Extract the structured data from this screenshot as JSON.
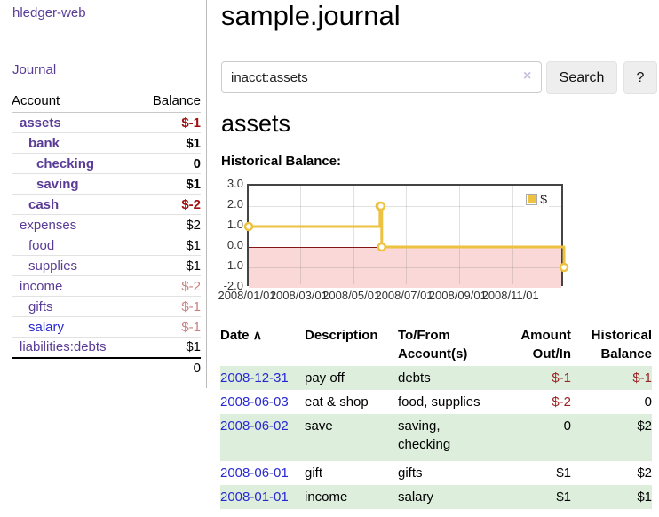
{
  "app": {
    "title": "hledger-web"
  },
  "colors": {
    "link_purple": "#5a3c96",
    "link_blue": "#2828d2",
    "negative_strong": "#a01010",
    "negative_muted": "#c88282",
    "table_negative": "#9b2323",
    "row_stripe_green": "#ddeedd",
    "chart_series_gold": "#edc240",
    "chart_negative_region": "#fad8d8",
    "chart_zero_line": "#871414"
  },
  "sidebar": {
    "nav_journal": "Journal",
    "accounts": {
      "header_account": "Account",
      "header_balance": "Balance",
      "rows": [
        {
          "name": "assets",
          "balance": "$-1",
          "depth": 1,
          "bold": true,
          "balance_class": "neg-strong"
        },
        {
          "name": "bank",
          "balance": "$1",
          "depth": 2,
          "bold": true,
          "balance_class": ""
        },
        {
          "name": "checking",
          "balance": "0",
          "depth": 3,
          "bold": true,
          "balance_class": ""
        },
        {
          "name": "saving",
          "balance": "$1",
          "depth": 3,
          "bold": true,
          "balance_class": ""
        },
        {
          "name": "cash",
          "balance": "$-2",
          "depth": 2,
          "bold": true,
          "balance_class": "neg-strong"
        },
        {
          "name": "expenses",
          "balance": "$2",
          "depth": 1,
          "bold": false,
          "balance_class": ""
        },
        {
          "name": "food",
          "balance": "$1",
          "depth": 2,
          "bold": false,
          "balance_class": ""
        },
        {
          "name": "supplies",
          "balance": "$1",
          "depth": 2,
          "bold": false,
          "balance_class": ""
        },
        {
          "name": "income",
          "balance": "$-2",
          "depth": 1,
          "bold": false,
          "balance_class": "neg-muted"
        },
        {
          "name": "gifts",
          "balance": "$-1",
          "depth": 2,
          "bold": false,
          "balance_class": "neg-muted"
        },
        {
          "name": "salary",
          "balance": "$-1",
          "depth": 2,
          "bold": false,
          "balance_class": "neg-muted",
          "link_color": "blue"
        },
        {
          "name": "liabilities:debts",
          "balance": "$1",
          "depth": 1,
          "bold": false,
          "balance_class": ""
        }
      ],
      "total": "0"
    }
  },
  "main": {
    "title": "sample.journal",
    "search": {
      "value": "inacct:assets",
      "clear_icon": "×",
      "button_label": "Search",
      "help_label": "?"
    },
    "account_heading": "assets",
    "chart_label": "Historical Balance:",
    "register": {
      "headers": {
        "date": "Date",
        "sort_icon": "∧",
        "description": "Description",
        "accounts": "To/From\nAccount(s)",
        "amount": "Amount\nOut/In",
        "balance": "Historical\nBalance"
      },
      "rows": [
        {
          "date": "2008-12-31",
          "description": "pay off",
          "accounts": "debts",
          "amount": "$-1",
          "amount_negative": true,
          "balance": "$-1",
          "balance_negative": true
        },
        {
          "date": "2008-06-03",
          "description": "eat & shop",
          "accounts": "food, supplies",
          "amount": "$-2",
          "amount_negative": true,
          "balance": "0",
          "balance_negative": false
        },
        {
          "date": "2008-06-02",
          "description": "save",
          "accounts": "saving,\nchecking",
          "amount": "0",
          "amount_negative": false,
          "balance": "$2",
          "balance_negative": false
        },
        {
          "date": "2008-06-01",
          "description": "gift",
          "accounts": "gifts",
          "amount": "$1",
          "amount_negative": false,
          "balance": "$2",
          "balance_negative": false
        },
        {
          "date": "2008-01-01",
          "description": "income",
          "accounts": "salary",
          "amount": "$1",
          "amount_negative": false,
          "balance": "$1",
          "balance_negative": false
        }
      ]
    }
  },
  "chart_data": {
    "type": "line",
    "title": "Historical Balance:",
    "steps": true,
    "x_range": [
      "2008-01-01",
      "2009-01-01"
    ],
    "ylim": [
      -2,
      3
    ],
    "grid": true,
    "legend_position": "top-right",
    "series": [
      {
        "name": "$",
        "color": "#edc240",
        "points": [
          [
            "2008-01-01",
            1
          ],
          [
            "2008-06-01",
            2
          ],
          [
            "2008-06-02",
            2
          ],
          [
            "2008-06-03",
            0
          ],
          [
            "2008-12-31",
            -1
          ]
        ]
      }
    ],
    "y_ticks": [
      {
        "label": "3.0",
        "value": 3
      },
      {
        "label": "2.0",
        "value": 2
      },
      {
        "label": "1.0",
        "value": 1
      },
      {
        "label": "0.0",
        "value": 0
      },
      {
        "label": "-1.0",
        "value": -1
      },
      {
        "label": "-2.0",
        "value": -2
      }
    ],
    "x_ticks": [
      {
        "label": "2008/01/01",
        "date": "2008-01-01"
      },
      {
        "label": "2008/03/01",
        "date": "2008-03-01"
      },
      {
        "label": "2008/05/01",
        "date": "2008-05-01"
      },
      {
        "label": "2008/07/01",
        "date": "2008-07-01"
      },
      {
        "label": "2008/09/01",
        "date": "2008-09-01"
      },
      {
        "label": "2008/11/01",
        "date": "2008-11-01"
      }
    ],
    "negative_region_color": "#fad8d8",
    "zero_line_color": "#871414"
  }
}
